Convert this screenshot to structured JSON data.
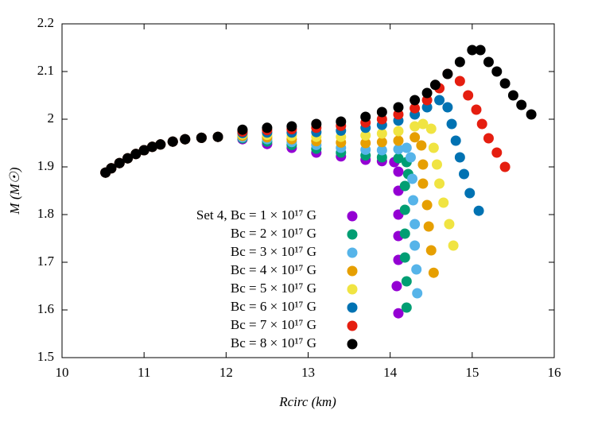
{
  "chart_data": {
    "type": "scatter",
    "x_label": "Rcirc (km)",
    "y_label": "M (M☉)",
    "xlim": [
      10,
      16
    ],
    "xticks": [
      10,
      11,
      12,
      13,
      14,
      15,
      16
    ],
    "ylim": [
      1.5,
      2.2
    ],
    "yticks": [
      1.5,
      1.6,
      1.7,
      1.8,
      1.9,
      2,
      2.1,
      2.2
    ],
    "grid": false,
    "legend": "lower center",
    "series": [
      {
        "name": "Set 4, Bc = 1 × 10¹⁷ G",
        "color": "#9400d3",
        "x": [
          10.53,
          10.6,
          10.7,
          10.8,
          10.9,
          11.0,
          11.1,
          11.2,
          11.35,
          11.5,
          11.7,
          11.9,
          12.2,
          12.5,
          12.8,
          13.1,
          13.4,
          13.7,
          13.9,
          14.05,
          14.1,
          14.1,
          14.1,
          14.1,
          14.1,
          14.08,
          14.1
        ],
        "values": [
          1.888,
          1.897,
          1.908,
          1.918,
          1.927,
          1.935,
          1.942,
          1.947,
          1.953,
          1.958,
          1.961,
          1.963,
          1.958,
          1.948,
          1.94,
          1.93,
          1.922,
          1.915,
          1.912,
          1.91,
          1.89,
          1.85,
          1.8,
          1.755,
          1.705,
          1.65,
          1.593
        ]
      },
      {
        "name": "Bc = 2 × 10¹⁷ G",
        "color": "#009e73",
        "x": [
          10.53,
          10.6,
          10.7,
          10.8,
          10.9,
          11.0,
          11.1,
          11.2,
          11.35,
          11.5,
          11.7,
          11.9,
          12.2,
          12.5,
          12.8,
          13.1,
          13.4,
          13.7,
          13.9,
          14.1,
          14.2,
          14.22,
          14.18,
          14.18,
          14.18,
          14.18,
          14.2,
          14.2
        ],
        "values": [
          1.888,
          1.897,
          1.908,
          1.918,
          1.927,
          1.935,
          1.942,
          1.947,
          1.953,
          1.958,
          1.961,
          1.963,
          1.96,
          1.953,
          1.946,
          1.938,
          1.93,
          1.924,
          1.92,
          1.918,
          1.91,
          1.885,
          1.86,
          1.81,
          1.76,
          1.71,
          1.66,
          1.605
        ]
      },
      {
        "name": "Bc = 3 × 10¹⁷ G",
        "color": "#56b4e9",
        "x": [
          10.53,
          10.6,
          10.7,
          10.8,
          10.9,
          11.0,
          11.1,
          11.2,
          11.35,
          11.5,
          11.7,
          11.9,
          12.2,
          12.5,
          12.8,
          13.1,
          13.4,
          13.7,
          13.9,
          14.1,
          14.2,
          14.25,
          14.27,
          14.28,
          14.3,
          14.3,
          14.32,
          14.33
        ],
        "values": [
          1.888,
          1.897,
          1.908,
          1.918,
          1.927,
          1.935,
          1.942,
          1.947,
          1.953,
          1.958,
          1.961,
          1.963,
          1.962,
          1.958,
          1.952,
          1.946,
          1.94,
          1.936,
          1.935,
          1.937,
          1.94,
          1.92,
          1.875,
          1.83,
          1.78,
          1.735,
          1.685,
          1.635
        ]
      },
      {
        "name": "Bc = 4 × 10¹⁷ G",
        "color": "#e69f00",
        "x": [
          10.53,
          10.6,
          10.7,
          10.8,
          10.9,
          11.0,
          11.1,
          11.2,
          11.35,
          11.5,
          11.7,
          11.9,
          12.2,
          12.5,
          12.8,
          13.1,
          13.4,
          13.7,
          13.9,
          14.1,
          14.3,
          14.38,
          14.4,
          14.4,
          14.45,
          14.47,
          14.5,
          14.53
        ],
        "values": [
          1.888,
          1.897,
          1.908,
          1.918,
          1.927,
          1.935,
          1.942,
          1.947,
          1.953,
          1.958,
          1.961,
          1.963,
          1.965,
          1.962,
          1.958,
          1.954,
          1.951,
          1.95,
          1.952,
          1.955,
          1.962,
          1.945,
          1.905,
          1.865,
          1.82,
          1.775,
          1.725,
          1.678
        ]
      },
      {
        "name": "Bc = 5 × 10¹⁷ G",
        "color": "#f0e442",
        "x": [
          10.53,
          10.6,
          10.7,
          10.8,
          10.9,
          11.0,
          11.1,
          11.2,
          11.35,
          11.5,
          11.7,
          11.9,
          12.2,
          12.5,
          12.8,
          13.1,
          13.4,
          13.7,
          13.9,
          14.1,
          14.3,
          14.4,
          14.5,
          14.53,
          14.57,
          14.6,
          14.65,
          14.72,
          14.77
        ],
        "values": [
          1.888,
          1.897,
          1.908,
          1.918,
          1.927,
          1.935,
          1.942,
          1.947,
          1.953,
          1.958,
          1.961,
          1.963,
          1.968,
          1.967,
          1.965,
          1.963,
          1.963,
          1.966,
          1.97,
          1.975,
          1.985,
          1.99,
          1.98,
          1.94,
          1.905,
          1.865,
          1.825,
          1.78,
          1.735
        ]
      },
      {
        "name": "Bc = 6 × 10¹⁷ G",
        "color": "#0072b2",
        "x": [
          10.53,
          10.6,
          10.7,
          10.8,
          10.9,
          11.0,
          11.1,
          11.2,
          11.35,
          11.5,
          11.7,
          11.9,
          12.2,
          12.5,
          12.8,
          13.1,
          13.4,
          13.7,
          13.9,
          14.1,
          14.3,
          14.45,
          14.6,
          14.7,
          14.75,
          14.8,
          14.85,
          14.9,
          14.97,
          15.08
        ],
        "values": [
          1.888,
          1.897,
          1.908,
          1.918,
          1.927,
          1.935,
          1.942,
          1.947,
          1.953,
          1.958,
          1.961,
          1.963,
          1.971,
          1.972,
          1.972,
          1.973,
          1.976,
          1.982,
          1.988,
          1.997,
          2.01,
          2.025,
          2.04,
          2.025,
          1.99,
          1.955,
          1.92,
          1.885,
          1.845,
          1.808
        ]
      },
      {
        "name": "Bc = 7 × 10¹⁷ G",
        "color": "#e51e10",
        "x": [
          10.53,
          10.6,
          10.7,
          10.8,
          10.9,
          11.0,
          11.1,
          11.2,
          11.35,
          11.5,
          11.7,
          11.9,
          12.2,
          12.5,
          12.8,
          13.1,
          13.4,
          13.7,
          13.9,
          14.1,
          14.3,
          14.45,
          14.6,
          14.7,
          14.85,
          14.95,
          15.05,
          15.12,
          15.2,
          15.3,
          15.4
        ],
        "values": [
          1.888,
          1.897,
          1.908,
          1.918,
          1.927,
          1.935,
          1.942,
          1.947,
          1.953,
          1.958,
          1.961,
          1.963,
          1.974,
          1.977,
          1.979,
          1.982,
          1.986,
          1.993,
          2.0,
          2.01,
          2.023,
          2.04,
          2.065,
          2.095,
          2.08,
          2.05,
          2.02,
          1.99,
          1.96,
          1.93,
          1.9
        ]
      },
      {
        "name": "Bc = 8 × 10¹⁷ G",
        "color": "#000000",
        "x": [
          10.53,
          10.6,
          10.7,
          10.8,
          10.9,
          11.0,
          11.1,
          11.2,
          11.35,
          11.5,
          11.7,
          11.9,
          12.2,
          12.5,
          12.8,
          13.1,
          13.4,
          13.7,
          13.9,
          14.1,
          14.3,
          14.45,
          14.55,
          14.7,
          14.85,
          15.0,
          15.1,
          15.2,
          15.3,
          15.4,
          15.5,
          15.6,
          15.72
        ],
        "values": [
          1.888,
          1.897,
          1.908,
          1.918,
          1.927,
          1.935,
          1.942,
          1.947,
          1.953,
          1.958,
          1.961,
          1.963,
          1.978,
          1.982,
          1.985,
          1.99,
          1.995,
          2.005,
          2.015,
          2.025,
          2.04,
          2.055,
          2.072,
          2.095,
          2.12,
          2.145,
          2.145,
          2.12,
          2.1,
          2.075,
          2.05,
          2.03,
          2.01
        ]
      }
    ]
  }
}
